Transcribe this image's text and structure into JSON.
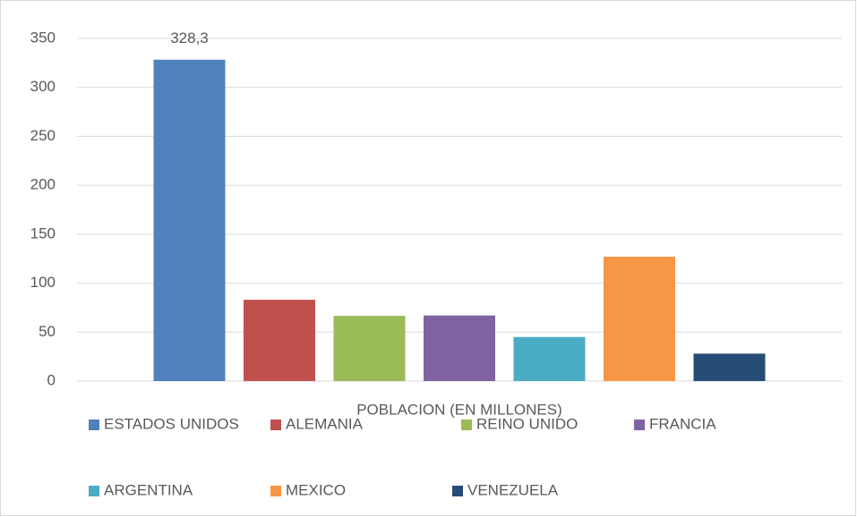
{
  "chart_data": {
    "type": "bar",
    "categories": [
      "POBLACION (EN MILLONES)"
    ],
    "series": [
      {
        "name": "ESTADOS UNIDOS",
        "color": "#4f81bd",
        "values": [
          328.3
        ],
        "value_labels": [
          "328,3"
        ]
      },
      {
        "name": "ALEMANIA",
        "color": "#c0504d",
        "values": [
          83
        ]
      },
      {
        "name": "REINO UNIDO",
        "color": "#9bbb59",
        "values": [
          66.6
        ]
      },
      {
        "name": "FRANCIA",
        "color": "#8064a2",
        "values": [
          67
        ]
      },
      {
        "name": "ARGENTINA",
        "color": "#4bacc6",
        "values": [
          45
        ]
      },
      {
        "name": "MEXICO",
        "color": "#f79646",
        "values": [
          127
        ]
      },
      {
        "name": "VENEZUELA",
        "color": "#254c74",
        "values": [
          28
        ]
      }
    ],
    "ylim": [
      0,
      350
    ],
    "yticks": [
      0,
      50,
      100,
      150,
      200,
      250,
      300,
      350
    ],
    "grid": true,
    "legend": "bottom"
  }
}
